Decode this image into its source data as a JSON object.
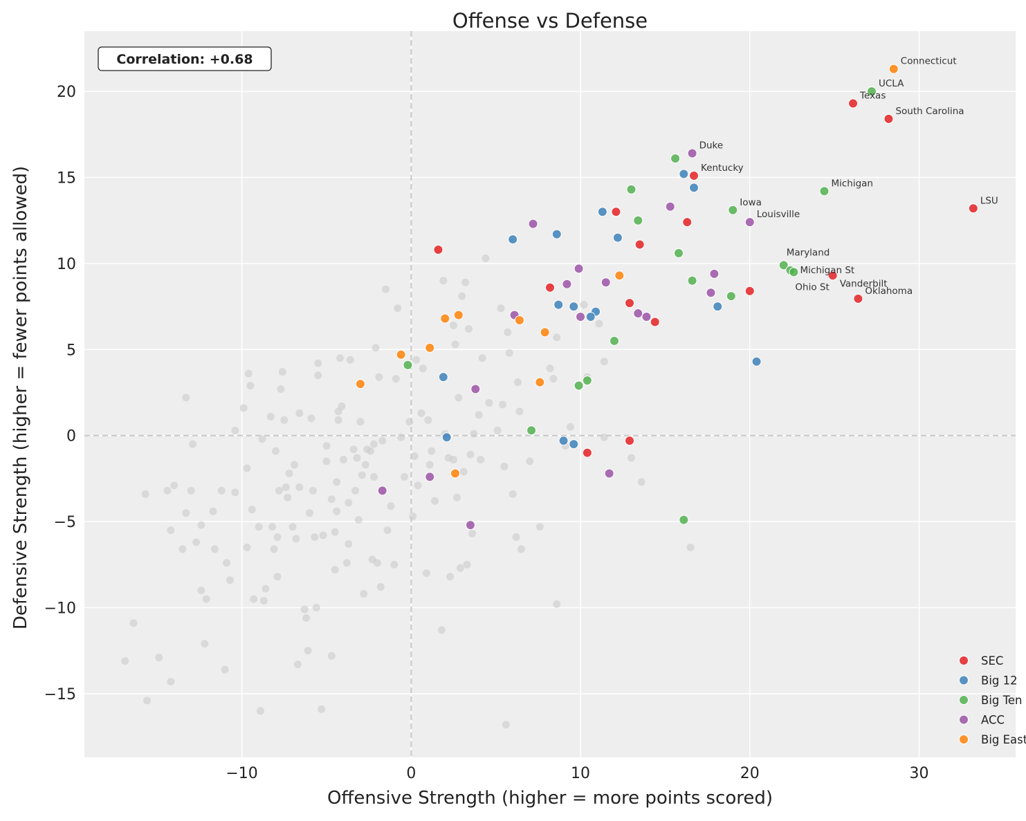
{
  "chart_data": {
    "type": "scatter",
    "title": "Offense vs Defense",
    "xlabel": "Offensive Strength (higher = more points scored)",
    "ylabel": "Defensive Strength (higher = fewer points allowed)",
    "xlim": [
      -19.3,
      35.7
    ],
    "ylim": [
      -18.7,
      23.5
    ],
    "xticks": [
      -10,
      0,
      10,
      20,
      30
    ],
    "yticks": [
      -15,
      -10,
      -5,
      0,
      5,
      10,
      15,
      20
    ],
    "grid": true,
    "reference_lines": {
      "x": 0,
      "y": 0,
      "style": "dashed"
    },
    "annotation": "Correlation: +0.68",
    "legend_position": "bottom-right",
    "background_color": "#eeeeee",
    "other_color": "#cccccc",
    "series": [
      {
        "name": "SEC",
        "color": "#e41a1c",
        "points": [
          {
            "x": 26.1,
            "y": 19.3,
            "label": "Texas"
          },
          {
            "x": 28.2,
            "y": 18.4,
            "label": "South Carolina"
          },
          {
            "x": 33.2,
            "y": 13.2,
            "label": "LSU"
          },
          {
            "x": 24.9,
            "y": 9.3,
            "label": "Vanderbilt"
          },
          {
            "x": 26.4,
            "y": 7.95,
            "label": "Oklahoma"
          },
          {
            "x": 16.7,
            "y": 15.1,
            "label": "Kentucky"
          },
          {
            "x": 12.1,
            "y": 13.0
          },
          {
            "x": 16.3,
            "y": 12.4
          },
          {
            "x": 13.5,
            "y": 11.1
          },
          {
            "x": 1.6,
            "y": 10.8
          },
          {
            "x": 20.0,
            "y": 8.4
          },
          {
            "x": 8.2,
            "y": 8.6
          },
          {
            "x": 12.9,
            "y": 7.7
          },
          {
            "x": 14.4,
            "y": 6.6
          },
          {
            "x": 12.9,
            "y": -0.3
          },
          {
            "x": 10.4,
            "y": -1.0
          }
        ]
      },
      {
        "name": "Big 12",
        "color": "#377eb8",
        "points": [
          {
            "x": 16.1,
            "y": 15.2
          },
          {
            "x": 16.7,
            "y": 14.4
          },
          {
            "x": 11.3,
            "y": 13.0
          },
          {
            "x": 6.0,
            "y": 11.4
          },
          {
            "x": 8.6,
            "y": 11.7
          },
          {
            "x": 12.2,
            "y": 11.5
          },
          {
            "x": 8.7,
            "y": 7.6
          },
          {
            "x": 9.6,
            "y": 7.5
          },
          {
            "x": 10.9,
            "y": 7.2
          },
          {
            "x": 10.6,
            "y": 6.9
          },
          {
            "x": 18.1,
            "y": 7.5
          },
          {
            "x": 20.4,
            "y": 4.3
          },
          {
            "x": 1.9,
            "y": 3.4
          },
          {
            "x": 2.1,
            "y": -0.1
          },
          {
            "x": 9.6,
            "y": -0.5
          },
          {
            "x": 9.0,
            "y": -0.3
          }
        ]
      },
      {
        "name": "Big Ten",
        "color": "#4daf4a",
        "points": [
          {
            "x": 27.2,
            "y": 20.0,
            "label": "UCLA"
          },
          {
            "x": 24.4,
            "y": 14.2,
            "label": "Michigan"
          },
          {
            "x": 19.0,
            "y": 13.1,
            "label": "Iowa"
          },
          {
            "x": 22.0,
            "y": 9.9,
            "label": "Maryland"
          },
          {
            "x": 22.4,
            "y": 9.6,
            "label": "Michigan St"
          },
          {
            "x": 22.6,
            "y": 9.5,
            "label": "Ohio St"
          },
          {
            "x": 15.6,
            "y": 16.1
          },
          {
            "x": 13.0,
            "y": 14.3
          },
          {
            "x": 13.4,
            "y": 12.5
          },
          {
            "x": 15.8,
            "y": 10.6
          },
          {
            "x": 16.6,
            "y": 9.0
          },
          {
            "x": 18.9,
            "y": 8.1
          },
          {
            "x": 12.0,
            "y": 5.5
          },
          {
            "x": -0.2,
            "y": 4.1
          },
          {
            "x": 10.4,
            "y": 3.2
          },
          {
            "x": 9.9,
            "y": 2.9
          },
          {
            "x": 7.1,
            "y": 0.3
          },
          {
            "x": 16.1,
            "y": -4.9
          }
        ]
      },
      {
        "name": "ACC",
        "color": "#984ea3",
        "points": [
          {
            "x": 16.6,
            "y": 16.4,
            "label": "Duke"
          },
          {
            "x": 20.0,
            "y": 12.4,
            "label": "Louisville"
          },
          {
            "x": 15.3,
            "y": 13.3
          },
          {
            "x": 7.2,
            "y": 12.3
          },
          {
            "x": 9.9,
            "y": 9.7
          },
          {
            "x": 9.2,
            "y": 8.8
          },
          {
            "x": 11.5,
            "y": 8.9
          },
          {
            "x": 17.9,
            "y": 9.4
          },
          {
            "x": 17.7,
            "y": 8.3
          },
          {
            "x": 13.4,
            "y": 7.1
          },
          {
            "x": 13.9,
            "y": 6.9
          },
          {
            "x": 6.1,
            "y": 7.0
          },
          {
            "x": 10.0,
            "y": 6.9
          },
          {
            "x": 3.8,
            "y": 2.7
          },
          {
            "x": 1.1,
            "y": -2.4
          },
          {
            "x": -1.7,
            "y": -3.2
          },
          {
            "x": 3.5,
            "y": -5.2
          },
          {
            "x": 11.7,
            "y": -2.2
          }
        ]
      },
      {
        "name": "Big East",
        "color": "#ff7f00",
        "points": [
          {
            "x": 28.5,
            "y": 21.3,
            "label": "Connecticut"
          },
          {
            "x": 12.3,
            "y": 9.3
          },
          {
            "x": 2.0,
            "y": 6.8
          },
          {
            "x": 2.8,
            "y": 7.0
          },
          {
            "x": 6.4,
            "y": 6.7
          },
          {
            "x": 7.9,
            "y": 6.0
          },
          {
            "x": 1.1,
            "y": 5.1
          },
          {
            "x": -0.6,
            "y": 4.7
          },
          {
            "x": 7.6,
            "y": 3.1
          },
          {
            "x": -3.0,
            "y": 3.0
          },
          {
            "x": 2.6,
            "y": -2.2
          }
        ]
      }
    ],
    "other_points": [
      [
        -16.9,
        -13.1
      ],
      [
        -16.4,
        -10.9
      ],
      [
        -15.6,
        -15.4
      ],
      [
        -15.7,
        -3.4
      ],
      [
        -14.9,
        -12.9
      ],
      [
        -14.4,
        -3.2
      ],
      [
        -14.2,
        -5.5
      ],
      [
        -14.2,
        -14.3
      ],
      [
        -14.0,
        -2.9
      ],
      [
        -13.5,
        -6.6
      ],
      [
        -13.3,
        2.2
      ],
      [
        -13.3,
        -4.5
      ],
      [
        -13.0,
        -3.2
      ],
      [
        -12.9,
        -0.5
      ],
      [
        -12.7,
        -6.2
      ],
      [
        -12.4,
        -5.2
      ],
      [
        -12.4,
        -9.0
      ],
      [
        -12.2,
        -12.1
      ],
      [
        -12.1,
        -9.5
      ],
      [
        -11.7,
        -4.4
      ],
      [
        -11.6,
        -6.6
      ],
      [
        -11.2,
        -3.2
      ],
      [
        -11.0,
        -13.6
      ],
      [
        -10.9,
        -7.4
      ],
      [
        -10.7,
        -8.4
      ],
      [
        -10.4,
        -3.3
      ],
      [
        -10.4,
        0.3
      ],
      [
        -9.9,
        1.6
      ],
      [
        -9.7,
        -1.9
      ],
      [
        -9.7,
        -6.5
      ],
      [
        -9.6,
        3.6
      ],
      [
        -9.5,
        2.9
      ],
      [
        -9.4,
        -4.3
      ],
      [
        -9.3,
        -9.5
      ],
      [
        -9.0,
        -5.3
      ],
      [
        -8.9,
        -16.0
      ],
      [
        -8.8,
        -0.2
      ],
      [
        -8.7,
        -9.6
      ],
      [
        -8.6,
        -8.9
      ],
      [
        -8.3,
        1.1
      ],
      [
        -8.2,
        -5.3
      ],
      [
        -8.1,
        -6.6
      ],
      [
        -8.0,
        -0.9
      ],
      [
        -7.9,
        -5.9
      ],
      [
        -7.9,
        -8.2
      ],
      [
        -7.8,
        -3.2
      ],
      [
        -7.7,
        2.7
      ],
      [
        -7.6,
        3.7
      ],
      [
        -7.5,
        0.9
      ],
      [
        -7.4,
        -3.0
      ],
      [
        -7.3,
        -3.6
      ],
      [
        -7.2,
        -2.2
      ],
      [
        -7.0,
        -5.3
      ],
      [
        -6.9,
        -1.7
      ],
      [
        -6.8,
        -6.0
      ],
      [
        -6.7,
        -13.3
      ],
      [
        -6.6,
        1.3
      ],
      [
        -6.6,
        -3.0
      ],
      [
        -6.3,
        -10.1
      ],
      [
        -6.2,
        -10.6
      ],
      [
        -6.1,
        -12.5
      ],
      [
        -5.9,
        1.0
      ],
      [
        -5.8,
        -3.2
      ],
      [
        -5.7,
        -5.9
      ],
      [
        -5.6,
        -10.0
      ],
      [
        -5.5,
        4.2
      ],
      [
        -5.5,
        3.5
      ],
      [
        -5.3,
        -15.9
      ],
      [
        -5.2,
        -5.8
      ],
      [
        -5.0,
        -1.5
      ],
      [
        -5.0,
        -0.6
      ],
      [
        -4.7,
        -3.7
      ],
      [
        -4.7,
        -12.8
      ],
      [
        -4.5,
        -5.6
      ],
      [
        -4.5,
        -7.8
      ],
      [
        -4.4,
        -2.7
      ],
      [
        -4.4,
        -4.4
      ],
      [
        -4.3,
        1.4
      ],
      [
        -4.3,
        0.9
      ],
      [
        -4.2,
        4.5
      ],
      [
        -4.1,
        1.7
      ],
      [
        -4.0,
        -1.4
      ],
      [
        -3.7,
        -3.9
      ],
      [
        -3.7,
        -6.3
      ],
      [
        -3.6,
        4.4
      ],
      [
        -3.4,
        -0.8
      ],
      [
        -3.3,
        -3.2
      ],
      [
        -3.2,
        -1.3
      ],
      [
        -3.1,
        -4.9
      ],
      [
        -3.0,
        0.8
      ],
      [
        -2.9,
        -2.3
      ],
      [
        -2.8,
        -9.2
      ],
      [
        -2.7,
        -1.7
      ],
      [
        -2.6,
        -0.8
      ],
      [
        -2.3,
        -7.2
      ],
      [
        -2.2,
        -0.5
      ],
      [
        -2.2,
        -2.4
      ],
      [
        -2.1,
        5.1
      ],
      [
        -2.0,
        -7.4
      ],
      [
        -1.9,
        3.4
      ],
      [
        -1.8,
        -8.8
      ],
      [
        -1.7,
        -0.3
      ],
      [
        -1.5,
        8.5
      ],
      [
        -1.4,
        -5.5
      ],
      [
        -1.2,
        -4.1
      ],
      [
        -1.0,
        -7.5
      ],
      [
        -0.8,
        7.4
      ],
      [
        -0.6,
        -0.1
      ],
      [
        -0.4,
        -2.4
      ],
      [
        -0.1,
        0.8
      ],
      [
        0.1,
        -4.7
      ],
      [
        0.2,
        -1.2
      ],
      [
        0.3,
        4.4
      ],
      [
        0.4,
        -2.9
      ],
      [
        0.6,
        1.3
      ],
      [
        0.7,
        3.9
      ],
      [
        0.9,
        -8.0
      ],
      [
        1.0,
        0.9
      ],
      [
        1.1,
        -1.7
      ],
      [
        1.4,
        -3.8
      ],
      [
        1.8,
        -11.3
      ],
      [
        1.9,
        9.0
      ],
      [
        2.0,
        0.1
      ],
      [
        2.3,
        -8.2
      ],
      [
        2.5,
        -1.4
      ],
      [
        2.5,
        6.4
      ],
      [
        2.6,
        5.3
      ],
      [
        2.7,
        -3.6
      ],
      [
        2.8,
        2.2
      ],
      [
        2.9,
        -7.7
      ],
      [
        3.0,
        8.1
      ],
      [
        3.1,
        -2.1
      ],
      [
        3.2,
        8.9
      ],
      [
        3.3,
        -7.5
      ],
      [
        3.4,
        6.2
      ],
      [
        3.5,
        -1.1
      ],
      [
        3.6,
        -5.7
      ],
      [
        3.7,
        0.1
      ],
      [
        4.0,
        1.2
      ],
      [
        4.1,
        -1.4
      ],
      [
        4.2,
        4.5
      ],
      [
        4.4,
        10.3
      ],
      [
        4.6,
        1.9
      ],
      [
        5.1,
        0.3
      ],
      [
        5.3,
        7.4
      ],
      [
        5.4,
        1.8
      ],
      [
        5.5,
        -1.8
      ],
      [
        5.7,
        6.0
      ],
      [
        5.8,
        4.8
      ],
      [
        6.0,
        -3.4
      ],
      [
        6.2,
        -5.9
      ],
      [
        6.3,
        3.1
      ],
      [
        6.4,
        1.4
      ],
      [
        6.5,
        -6.6
      ],
      [
        7.0,
        -1.5
      ],
      [
        7.6,
        -5.3
      ],
      [
        8.2,
        3.9
      ],
      [
        8.4,
        3.3
      ],
      [
        8.6,
        5.7
      ],
      [
        8.6,
        -9.8
      ],
      [
        9.1,
        -0.6
      ],
      [
        9.4,
        0.5
      ],
      [
        10.2,
        7.6
      ],
      [
        10.4,
        3.4
      ],
      [
        11.1,
        6.5
      ],
      [
        11.4,
        4.3
      ],
      [
        11.4,
        -0.1
      ],
      [
        13.0,
        -1.3
      ],
      [
        13.6,
        -2.7
      ],
      [
        16.5,
        -6.5
      ],
      [
        5.6,
        -16.8
      ],
      [
        -3.8,
        -7.4
      ],
      [
        -0.9,
        3.3
      ],
      [
        -2.4,
        -0.9
      ],
      [
        1.2,
        -0.9
      ],
      [
        2.2,
        -1.3
      ],
      [
        -6.0,
        -4.5
      ]
    ]
  }
}
